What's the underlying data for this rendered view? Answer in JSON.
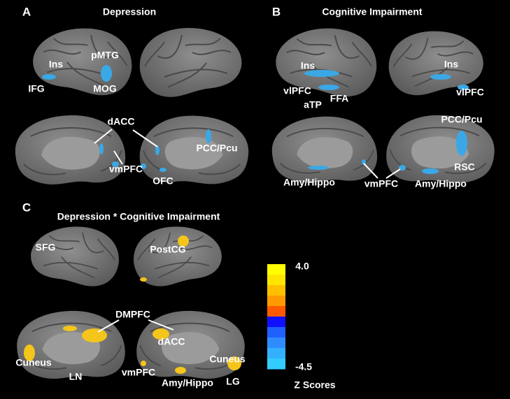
{
  "panels": [
    {
      "letter": "A",
      "title": "Depression",
      "labels": [
        "Ins",
        "pMTG",
        "IFG",
        "MOG",
        "dACC",
        "PCC/Pcu",
        "vmPFC",
        "OFC"
      ]
    },
    {
      "letter": "B",
      "title": "Cognitive Impairment",
      "labels": [
        "Ins",
        "Ins",
        "vlPFC",
        "aTP",
        "FFA",
        "vlPFC",
        "PCC/Pcu",
        "RSC",
        "Amy/Hippo",
        "vmPFC",
        "Amy/Hippo"
      ]
    },
    {
      "letter": "C",
      "title": "Depression * Cognitive Impairment",
      "labels": [
        "SFG",
        "PostCG",
        "DMPFC",
        "dACC",
        "Cuneus",
        "LN",
        "vmPFC",
        "Amy/Hippo",
        "Cuneus",
        "LG"
      ]
    }
  ],
  "colorbar": {
    "max": "4.0",
    "min": "-4.5",
    "title": "Z Scores",
    "colors": [
      "#ffff00",
      "#ffe600",
      "#ffc000",
      "#ff9a00",
      "#ff5a00",
      "#1010ff",
      "#2060ff",
      "#2f8cff",
      "#34b0ff",
      "#33ccff"
    ]
  }
}
